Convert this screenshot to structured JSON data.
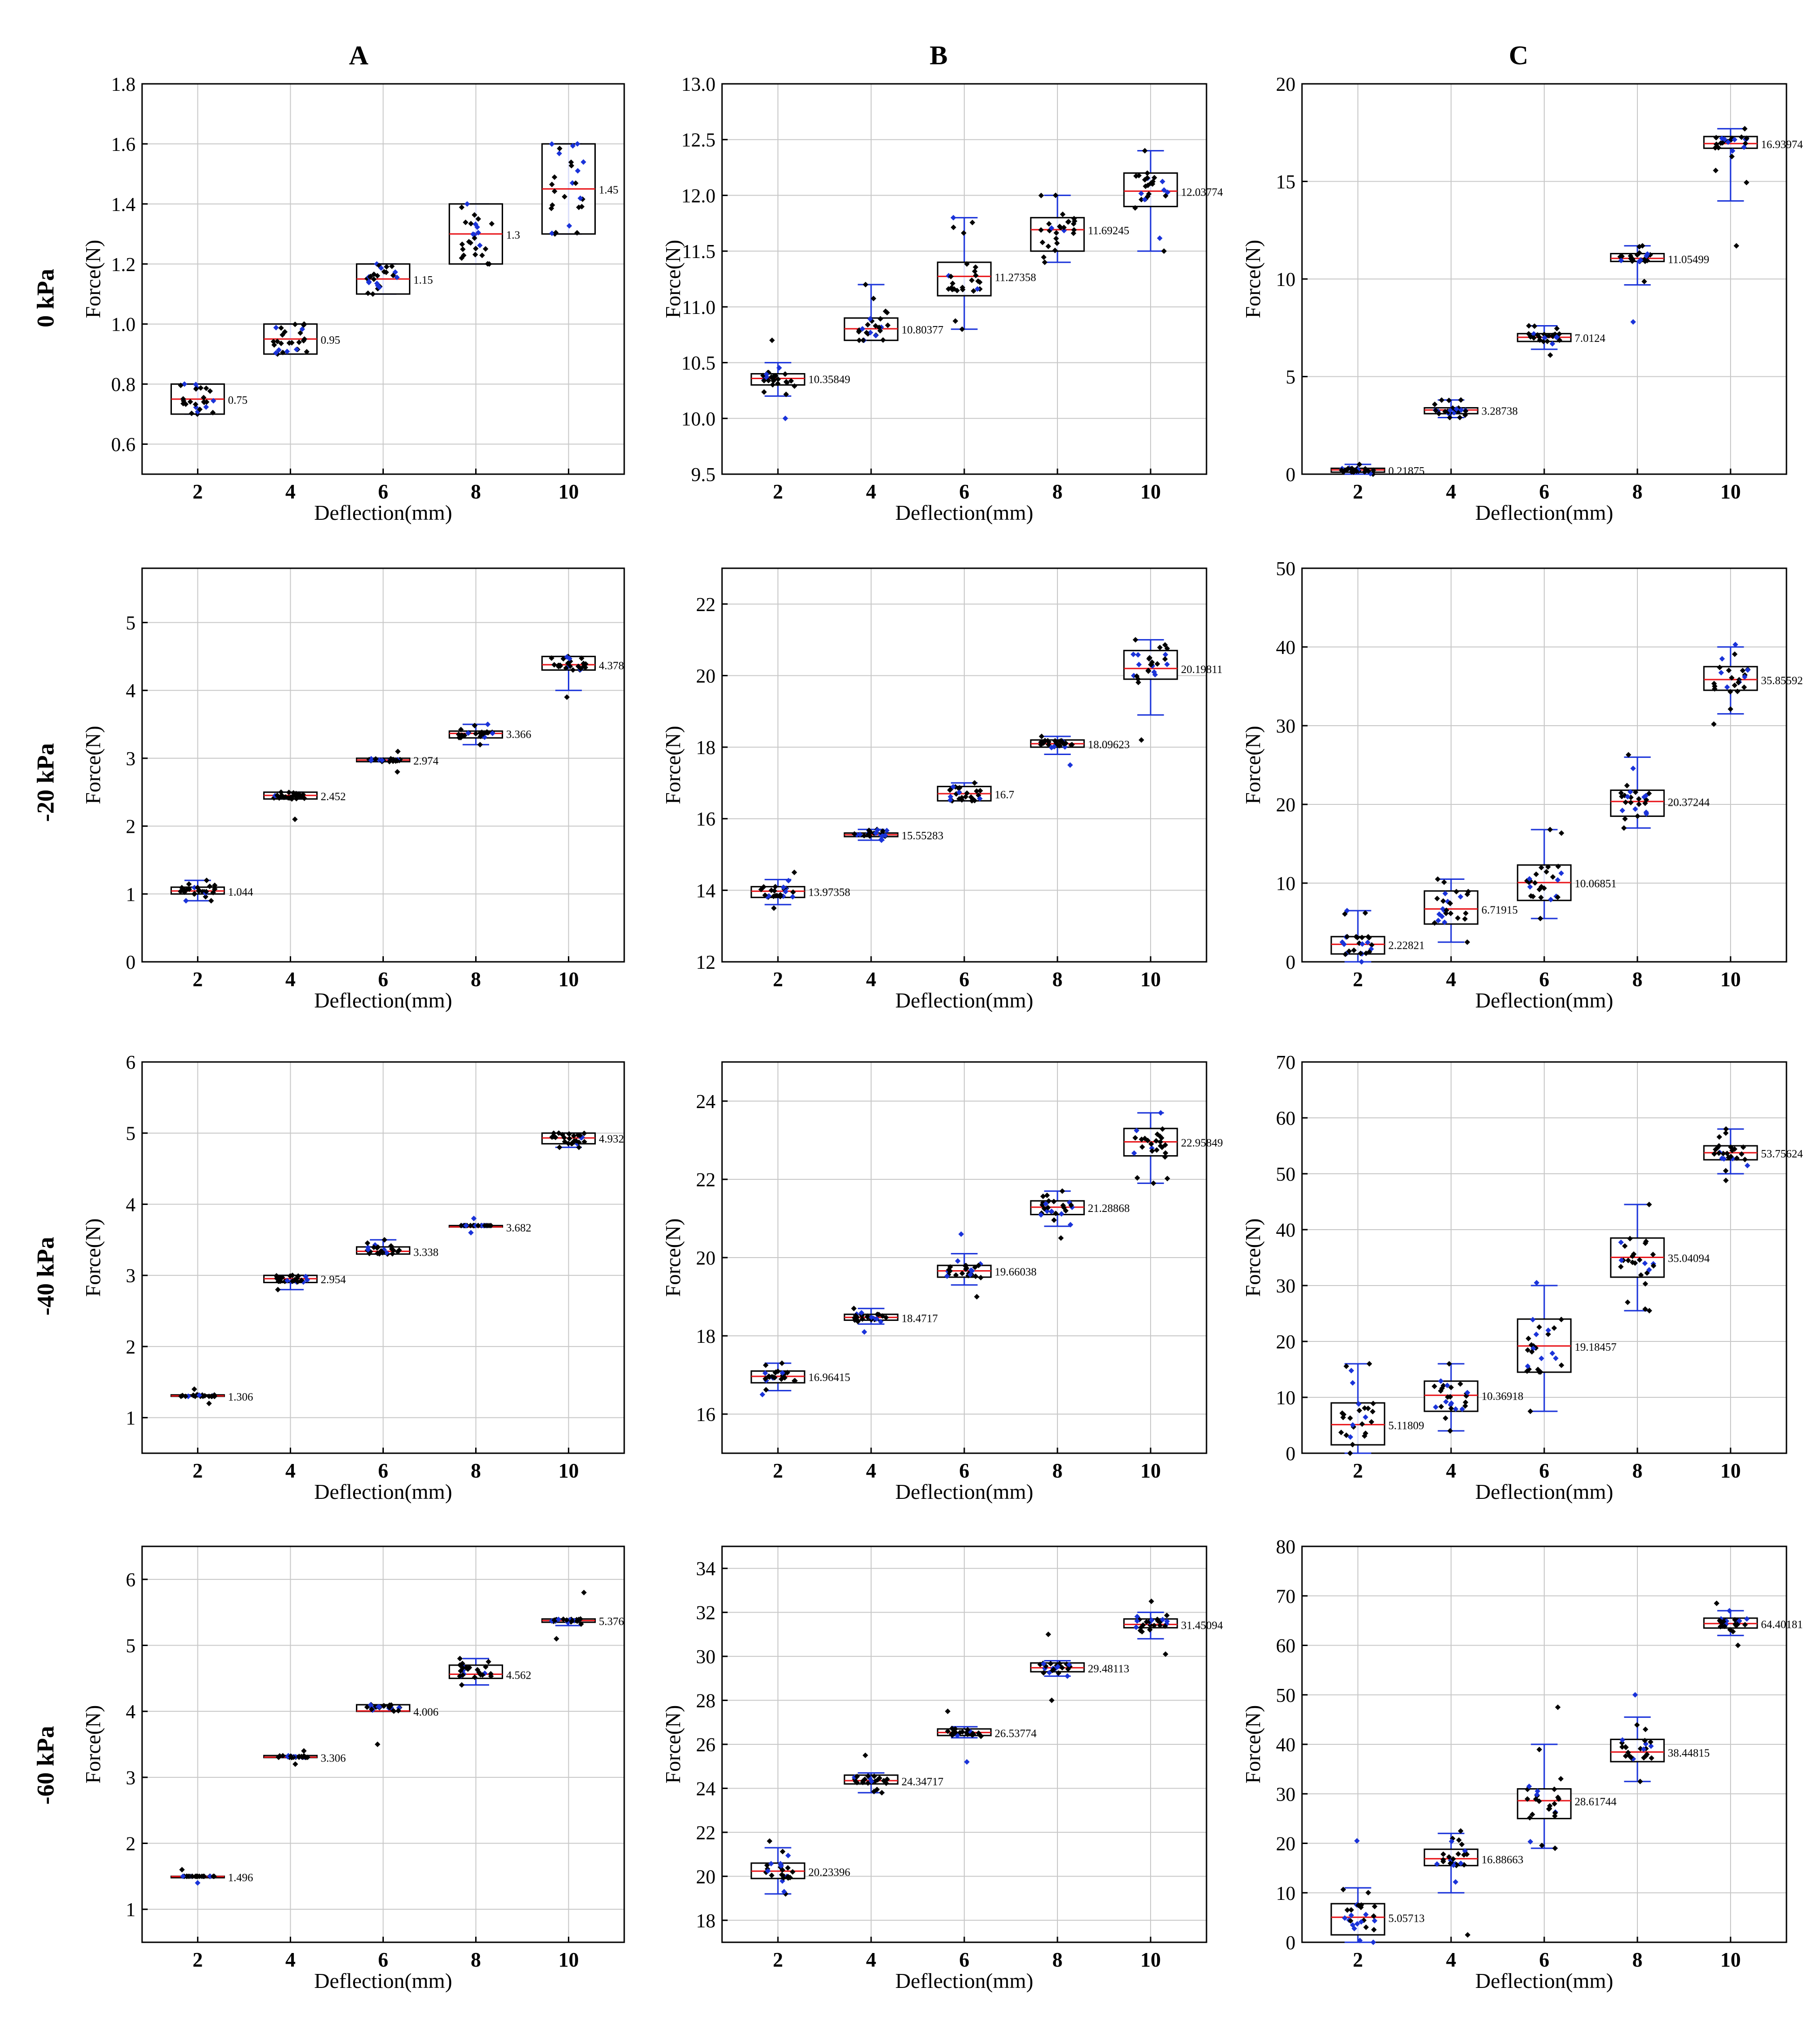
{
  "figure": {
    "column_titles": [
      "A",
      "B",
      "C"
    ],
    "row_titles": [
      "0 kPa",
      "-20 kPa",
      "-40 kPa",
      "-60 kPa"
    ],
    "xlabel": "Deflection(mm)",
    "ylabel": "Force(N)",
    "xticks": [
      2,
      4,
      6,
      8,
      10
    ],
    "colors": {
      "median": "#e8161b",
      "whisker": "#1a33d9",
      "point": "#000000",
      "box": "#000000",
      "grid": "#c8c8c8"
    }
  },
  "chart_data": [
    {
      "type": "box",
      "panel": "A / 0 kPa",
      "x": [
        2,
        4,
        6,
        8,
        10
      ],
      "ylim": [
        0.5,
        1.8
      ],
      "yticks": [
        0.6,
        0.8,
        1.0,
        1.2,
        1.4,
        1.6,
        1.8
      ],
      "ytick_labels": [
        "0.6",
        "0.8",
        "1.0",
        "1.2",
        "1.4",
        "1.6",
        "1.8"
      ],
      "grid": true,
      "means": [
        0.75,
        0.95,
        1.15,
        1.3,
        1.45
      ],
      "mean_labels": [
        "0.75",
        "0.95",
        "1.15",
        "1.3",
        "1.45"
      ],
      "q1": [
        0.7,
        0.9,
        1.1,
        1.2,
        1.3
      ],
      "q3": [
        0.8,
        1.0,
        1.2,
        1.4,
        1.6
      ],
      "whisker_low": [
        0.7,
        0.9,
        1.1,
        1.2,
        1.3
      ],
      "whisker_high": [
        0.8,
        1.0,
        1.2,
        1.4,
        1.6
      ],
      "data_low": [
        0.7,
        0.9,
        1.1,
        1.2,
        1.3
      ],
      "data_high": [
        0.8,
        1.0,
        1.2,
        1.4,
        1.6
      ]
    },
    {
      "type": "box",
      "panel": "B / 0 kPa",
      "x": [
        2,
        4,
        6,
        8,
        10
      ],
      "ylim": [
        9.5,
        13.0
      ],
      "yticks": [
        9.5,
        10,
        10.5,
        11,
        11.5,
        12,
        12.5,
        13
      ],
      "ytick_labels": [
        "9.5",
        "10.0",
        "10.5",
        "11.0",
        "11.5",
        "12.0",
        "12.5",
        "13.0"
      ],
      "grid": true,
      "means": [
        10.35849,
        10.80377,
        11.27358,
        11.69245,
        12.03774
      ],
      "mean_labels": [
        "10.35849",
        "10.80377",
        "11.27358",
        "11.69245",
        "12.03774"
      ],
      "q1": [
        10.3,
        10.7,
        11.1,
        11.5,
        11.9
      ],
      "q3": [
        10.4,
        10.9,
        11.4,
        11.8,
        12.2
      ],
      "whisker_low": [
        10.2,
        10.7,
        10.8,
        11.4,
        11.5
      ],
      "whisker_high": [
        10.5,
        11.2,
        11.8,
        12.0,
        12.4
      ],
      "data_low": [
        10.0,
        10.7,
        10.8,
        11.4,
        11.5
      ],
      "data_high": [
        10.7,
        11.2,
        11.8,
        12.0,
        12.4
      ]
    },
    {
      "type": "box",
      "panel": "C / 0 kPa",
      "x": [
        2,
        4,
        6,
        8,
        10
      ],
      "ylim": [
        0,
        20
      ],
      "yticks": [
        0,
        5,
        10,
        15,
        20
      ],
      "ytick_labels": [
        "0",
        "5",
        "10",
        "15",
        "20"
      ],
      "grid": true,
      "means": [
        0.21875,
        3.28738,
        7.0124,
        11.05499,
        16.93974
      ],
      "mean_labels": [
        "0.21875",
        "3.28738",
        "7.0124",
        "11.05499",
        "16.93974"
      ],
      "q1": [
        0.1,
        3.1,
        6.8,
        10.9,
        16.7
      ],
      "q3": [
        0.3,
        3.4,
        7.2,
        11.3,
        17.3
      ],
      "whisker_low": [
        0.0,
        2.9,
        6.4,
        9.7,
        14.0
      ],
      "whisker_high": [
        0.5,
        3.8,
        7.6,
        11.7,
        17.7
      ],
      "data_low": [
        0.0,
        2.9,
        6.1,
        7.8,
        11.7
      ],
      "data_high": [
        0.5,
        3.8,
        7.6,
        11.7,
        17.7
      ]
    },
    {
      "type": "box",
      "panel": "A / -20 kPa",
      "x": [
        2,
        4,
        6,
        8,
        10
      ],
      "ylim": [
        0,
        5.8
      ],
      "yticks": [
        0,
        1,
        2,
        3,
        4,
        5
      ],
      "ytick_labels": [
        "0",
        "1",
        "2",
        "3",
        "4",
        "5"
      ],
      "grid": true,
      "means": [
        1.044,
        2.452,
        2.974,
        3.366,
        4.378
      ],
      "mean_labels": [
        "1.044",
        "2.452",
        "2.974",
        "3.366",
        "4.378"
      ],
      "q1": [
        1.0,
        2.4,
        2.95,
        3.3,
        4.3
      ],
      "q3": [
        1.1,
        2.5,
        3.0,
        3.4,
        4.5
      ],
      "whisker_low": [
        0.9,
        2.4,
        2.95,
        3.2,
        4.0
      ],
      "whisker_high": [
        1.2,
        2.5,
        3.0,
        3.5,
        4.5
      ],
      "data_low": [
        0.9,
        2.1,
        2.8,
        3.2,
        3.9
      ],
      "data_high": [
        1.2,
        2.5,
        3.1,
        3.5,
        4.5
      ]
    },
    {
      "type": "box",
      "panel": "B / -20 kPa",
      "x": [
        2,
        4,
        6,
        8,
        10
      ],
      "ylim": [
        12,
        23
      ],
      "yticks": [
        12,
        14,
        16,
        18,
        20,
        22
      ],
      "ytick_labels": [
        "12",
        "14",
        "16",
        "18",
        "20",
        "22"
      ],
      "grid": true,
      "means": [
        13.97358,
        15.55283,
        16.7,
        18.09623,
        20.19811
      ],
      "mean_labels": [
        "13.97358",
        "15.55283",
        "16.7",
        "18.09623",
        "20.19811"
      ],
      "q1": [
        13.8,
        15.5,
        16.5,
        18.0,
        19.9
      ],
      "q3": [
        14.1,
        15.6,
        16.9,
        18.2,
        20.7
      ],
      "whisker_low": [
        13.6,
        15.4,
        16.5,
        17.8,
        18.9
      ],
      "whisker_high": [
        14.3,
        15.7,
        17.0,
        18.3,
        21.0
      ],
      "data_low": [
        13.5,
        15.4,
        16.5,
        17.5,
        18.2
      ],
      "data_high": [
        14.5,
        15.7,
        17.0,
        18.3,
        21.0
      ]
    },
    {
      "type": "box",
      "panel": "C / -20 kPa",
      "x": [
        2,
        4,
        6,
        8,
        10
      ],
      "ylim": [
        0,
        50
      ],
      "yticks": [
        0,
        10,
        20,
        30,
        40,
        50
      ],
      "ytick_labels": [
        "0",
        "10",
        "20",
        "30",
        "40",
        "50"
      ],
      "grid": true,
      "means": [
        2.22821,
        6.71915,
        10.06851,
        20.37244,
        35.85592
      ],
      "mean_labels": [
        "2.22821",
        "6.71915",
        "10.06851",
        "20.37244",
        "35.85592"
      ],
      "q1": [
        1.0,
        4.8,
        7.8,
        18.5,
        34.5
      ],
      "q3": [
        3.2,
        9.0,
        12.3,
        21.8,
        37.5
      ],
      "whisker_low": [
        0.0,
        2.5,
        5.5,
        17.0,
        31.5
      ],
      "whisker_high": [
        6.5,
        10.5,
        16.8,
        26.0,
        40.0
      ],
      "data_low": [
        0.0,
        2.5,
        5.5,
        17.0,
        30.2
      ],
      "data_high": [
        6.5,
        10.5,
        16.8,
        26.3,
        40.3
      ]
    },
    {
      "type": "box",
      "panel": "A / -40 kPa",
      "x": [
        2,
        4,
        6,
        8,
        10
      ],
      "ylim": [
        0.5,
        6
      ],
      "yticks": [
        1,
        2,
        3,
        4,
        5,
        6
      ],
      "ytick_labels": [
        "1",
        "2",
        "3",
        "4",
        "5",
        "6"
      ],
      "grid": true,
      "means": [
        1.306,
        2.954,
        3.338,
        3.682,
        4.932
      ],
      "mean_labels": [
        "1.306",
        "2.954",
        "3.338",
        "3.682",
        "4.932"
      ],
      "q1": [
        1.3,
        2.9,
        3.3,
        3.7,
        4.85
      ],
      "q3": [
        1.32,
        3.0,
        3.4,
        3.7,
        5.0
      ],
      "whisker_low": [
        1.3,
        2.8,
        3.3,
        3.7,
        4.8
      ],
      "whisker_high": [
        1.3,
        3.0,
        3.5,
        3.7,
        5.0
      ],
      "data_low": [
        1.2,
        2.8,
        3.3,
        3.6,
        4.8
      ],
      "data_high": [
        1.4,
        3.0,
        3.5,
        3.8,
        5.0
      ]
    },
    {
      "type": "box",
      "panel": "B / -40 kPa",
      "x": [
        2,
        4,
        6,
        8,
        10
      ],
      "ylim": [
        15,
        25
      ],
      "yticks": [
        16,
        18,
        20,
        22,
        24
      ],
      "ytick_labels": [
        "16",
        "18",
        "20",
        "22",
        "24"
      ],
      "grid": true,
      "means": [
        16.96415,
        18.4717,
        19.66038,
        21.28868,
        22.95849
      ],
      "mean_labels": [
        "16.96415",
        "18.4717",
        "19.66038",
        "21.28868",
        "22.95849"
      ],
      "q1": [
        16.8,
        18.4,
        19.5,
        21.1,
        22.6
      ],
      "q3": [
        17.1,
        18.55,
        19.8,
        21.45,
        23.3
      ],
      "whisker_low": [
        16.6,
        18.3,
        19.3,
        20.8,
        21.9
      ],
      "whisker_high": [
        17.3,
        18.7,
        20.1,
        21.7,
        23.7
      ],
      "data_low": [
        16.5,
        18.1,
        19.0,
        20.5,
        21.9
      ],
      "data_high": [
        17.3,
        18.7,
        20.6,
        21.7,
        23.7
      ]
    },
    {
      "type": "box",
      "panel": "C / -40 kPa",
      "x": [
        2,
        4,
        6,
        8,
        10
      ],
      "ylim": [
        0,
        70
      ],
      "yticks": [
        0,
        10,
        20,
        30,
        40,
        50,
        60,
        70
      ],
      "ytick_labels": [
        "0",
        "10",
        "20",
        "30",
        "40",
        "50",
        "60",
        "70"
      ],
      "grid": true,
      "means": [
        5.11809,
        10.36918,
        19.18457,
        35.04094,
        53.75624
      ],
      "mean_labels": [
        "5.11809",
        "10.36918",
        "19.18457",
        "35.04094",
        "53.75624"
      ],
      "q1": [
        1.5,
        7.5,
        14.5,
        31.5,
        52.5
      ],
      "q3": [
        9.0,
        12.9,
        24.0,
        38.5,
        55.0
      ],
      "whisker_low": [
        0.0,
        4.0,
        7.5,
        25.5,
        50.0
      ],
      "whisker_high": [
        16.0,
        16.0,
        30.0,
        44.5,
        58.0
      ],
      "data_low": [
        0.0,
        4.0,
        7.5,
        25.5,
        48.8
      ],
      "data_high": [
        16.0,
        16.0,
        30.5,
        44.5,
        58.0
      ]
    },
    {
      "type": "box",
      "panel": "A / -60 kPa",
      "x": [
        2,
        4,
        6,
        8,
        10
      ],
      "ylim": [
        0.5,
        6.5
      ],
      "yticks": [
        1,
        2,
        3,
        4,
        5,
        6
      ],
      "ytick_labels": [
        "1",
        "2",
        "3",
        "4",
        "5",
        "6"
      ],
      "grid": true,
      "means": [
        1.496,
        3.306,
        4.006,
        4.562,
        5.376
      ],
      "mean_labels": [
        "1.496",
        "3.306",
        "4.006",
        "4.562",
        "5.376"
      ],
      "q1": [
        1.5,
        3.3,
        4.0,
        4.5,
        5.35
      ],
      "q3": [
        1.5,
        3.33,
        4.1,
        4.7,
        5.4
      ],
      "whisker_low": [
        1.5,
        3.3,
        4.0,
        4.4,
        5.3
      ],
      "whisker_high": [
        1.5,
        3.3,
        4.1,
        4.8,
        5.4
      ],
      "data_low": [
        1.4,
        3.2,
        3.5,
        4.4,
        5.1
      ],
      "data_high": [
        1.6,
        3.4,
        4.1,
        4.8,
        5.8
      ]
    },
    {
      "type": "box",
      "panel": "B / -60 kPa",
      "x": [
        2,
        4,
        6,
        8,
        10
      ],
      "ylim": [
        17,
        35
      ],
      "yticks": [
        18,
        20,
        22,
        24,
        26,
        28,
        30,
        32,
        34
      ],
      "ytick_labels": [
        "18",
        "20",
        "22",
        "24",
        "26",
        "28",
        "30",
        "32",
        "34"
      ],
      "grid": true,
      "means": [
        20.23396,
        24.34717,
        26.53774,
        29.48113,
        31.45094
      ],
      "mean_labels": [
        "20.23396",
        "24.34717",
        "26.53774",
        "29.48113",
        "31.45094"
      ],
      "q1": [
        19.9,
        24.2,
        26.4,
        29.3,
        31.3
      ],
      "q3": [
        20.6,
        24.6,
        26.7,
        29.7,
        31.7
      ],
      "whisker_low": [
        19.2,
        23.8,
        26.3,
        29.1,
        30.8
      ],
      "whisker_high": [
        21.3,
        24.7,
        26.8,
        29.8,
        32.0
      ],
      "data_low": [
        19.2,
        23.8,
        25.2,
        28.0,
        30.1
      ],
      "data_high": [
        21.6,
        25.5,
        27.5,
        31.0,
        32.5
      ]
    },
    {
      "type": "box",
      "panel": "C / -60 kPa",
      "x": [
        2,
        4,
        6,
        8,
        10
      ],
      "ylim": [
        0,
        80
      ],
      "yticks": [
        0,
        10,
        20,
        30,
        40,
        50,
        60,
        70,
        80
      ],
      "ytick_labels": [
        "0",
        "10",
        "20",
        "30",
        "40",
        "50",
        "60",
        "70",
        "80"
      ],
      "grid": true,
      "means": [
        5.05713,
        16.88663,
        28.61744,
        38.44815,
        64.40181
      ],
      "mean_labels": [
        "5.05713",
        "16.88663",
        "28.61744",
        "38.44815",
        "64.40181"
      ],
      "q1": [
        1.5,
        15.5,
        25.0,
        36.5,
        63.5
      ],
      "q3": [
        7.8,
        18.8,
        31.0,
        41.0,
        65.5
      ],
      "whisker_low": [
        0.0,
        10.0,
        19.0,
        32.5,
        62.0
      ],
      "whisker_high": [
        11.0,
        22.0,
        40.0,
        45.5,
        67.0
      ],
      "data_low": [
        0.0,
        1.5,
        19.0,
        32.5,
        60.0
      ],
      "data_high": [
        20.5,
        22.5,
        47.5,
        50.0,
        68.5
      ]
    }
  ]
}
